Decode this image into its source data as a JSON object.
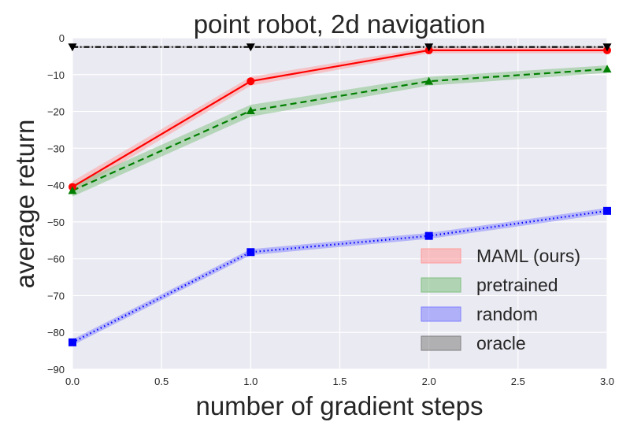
{
  "chart_data": {
    "type": "line",
    "title": "point robot, 2d navigation",
    "xlabel": "number of gradient steps",
    "ylabel": "average return",
    "xlim": [
      0.0,
      3.0
    ],
    "ylim": [
      -90,
      0
    ],
    "xticks": [
      "0.0",
      "0.5",
      "1.0",
      "1.5",
      "2.0",
      "2.5",
      "3.0"
    ],
    "yticks": [
      "0",
      "−10",
      "−20",
      "−30",
      "−40",
      "−50",
      "−60",
      "−70",
      "−80",
      "−90"
    ],
    "grid": true,
    "legend_position": "lower-right",
    "x": [
      0,
      1,
      2,
      3
    ],
    "series": [
      {
        "name": "MAML (ours)",
        "values": [
          -40.5,
          -11.8,
          -3.4,
          -3.4
        ],
        "band": [
          1.5,
          1.2,
          0.8,
          0.8
        ],
        "color": "#ff0000",
        "fill": "#ff9999",
        "marker": "circle",
        "linestyle": "solid"
      },
      {
        "name": "pretrained",
        "values": [
          -41.5,
          -19.8,
          -11.8,
          -8.5
        ],
        "band": [
          1.6,
          1.6,
          1.2,
          1.0
        ],
        "color": "#007f00",
        "fill": "#80c080",
        "marker": "triangle-up",
        "linestyle": "dashed"
      },
      {
        "name": "random",
        "values": [
          -82.7,
          -58.2,
          -53.8,
          -47.0
        ],
        "band": [
          0.8,
          0.8,
          0.8,
          0.8
        ],
        "color": "#0000ff",
        "fill": "#8080ff",
        "marker": "square",
        "linestyle": "dotted"
      },
      {
        "name": "oracle",
        "values": [
          -2.5,
          -2.5,
          -2.5,
          -2.5
        ],
        "band": [
          0.2,
          0.2,
          0.2,
          0.2
        ],
        "color": "#000000",
        "fill": "#808080",
        "marker": "triangle-down",
        "linestyle": "dashdot"
      }
    ]
  }
}
